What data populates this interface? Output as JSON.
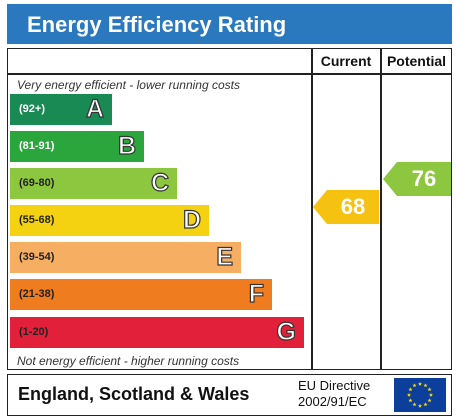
{
  "header": {
    "title": "Energy Efficiency Rating"
  },
  "columns": {
    "current_label": "Current",
    "potential_label": "Potential"
  },
  "notes": {
    "top": "Very energy efficient - lower running costs",
    "bottom": "Not energy efficient - higher running costs"
  },
  "bands": [
    {
      "range": "(92+)",
      "letter": "A",
      "color": "#1a8a55",
      "range_color": "#ffffff"
    },
    {
      "range": "(81-91)",
      "letter": "B",
      "color": "#2aa63c",
      "range_color": "#ffffff"
    },
    {
      "range": "(69-80)",
      "letter": "C",
      "color": "#8dc63f",
      "range_color": "#222222"
    },
    {
      "range": "(55-68)",
      "letter": "D",
      "color": "#f5d211",
      "range_color": "#222222"
    },
    {
      "range": "(39-54)",
      "letter": "E",
      "color": "#f6ae63",
      "range_color": "#222222"
    },
    {
      "range": "(21-38)",
      "letter": "F",
      "color": "#ef7d1f",
      "range_color": "#222222"
    },
    {
      "range": "(1-20)",
      "letter": "G",
      "color": "#e3203a",
      "range_color": "#222222"
    }
  ],
  "ratings": {
    "current": {
      "value": "68",
      "band": "D",
      "color": "#f5c211"
    },
    "potential": {
      "value": "76",
      "band": "C",
      "color": "#8dc63f"
    }
  },
  "footer": {
    "region": "England, Scotland & Wales",
    "directive_line1": "EU Directive",
    "directive_line2": "2002/91/EC",
    "flag_icon": "eu-flag-icon",
    "flag_color": "#0b3f9b",
    "star_color": "#ffdd00"
  }
}
